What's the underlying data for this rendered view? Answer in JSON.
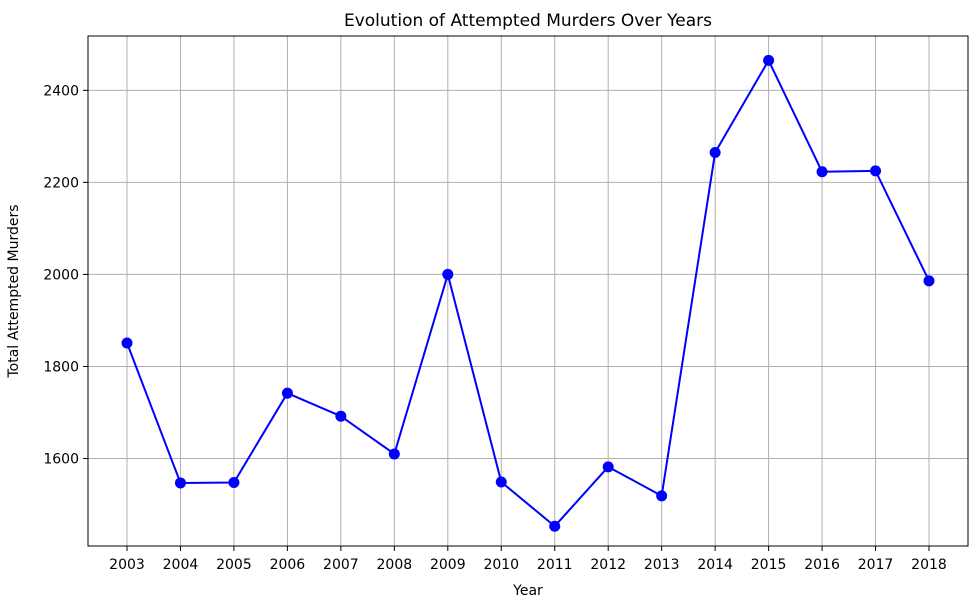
{
  "chart_data": {
    "type": "line",
    "title": "Evolution of Attempted Murders Over Years",
    "xlabel": "Year",
    "ylabel": "Total Attempted Murders",
    "x": [
      "2003",
      "2004",
      "2005",
      "2006",
      "2007",
      "2008",
      "2009",
      "2010",
      "2011",
      "2012",
      "2013",
      "2014",
      "2015",
      "2016",
      "2017",
      "2018"
    ],
    "series": [
      {
        "values": [
          1851,
          1547,
          1548,
          1742,
          1692,
          1610,
          2000,
          1549,
          1453,
          1582,
          1519,
          2265,
          2465,
          2223,
          2225,
          1986
        ],
        "color": "#0000ff",
        "marker": "circle"
      }
    ],
    "yticks": [
      1600,
      1800,
      2000,
      2200,
      2400
    ],
    "ylim": [
      1410,
      2518
    ],
    "grid": true,
    "legend": "none"
  }
}
